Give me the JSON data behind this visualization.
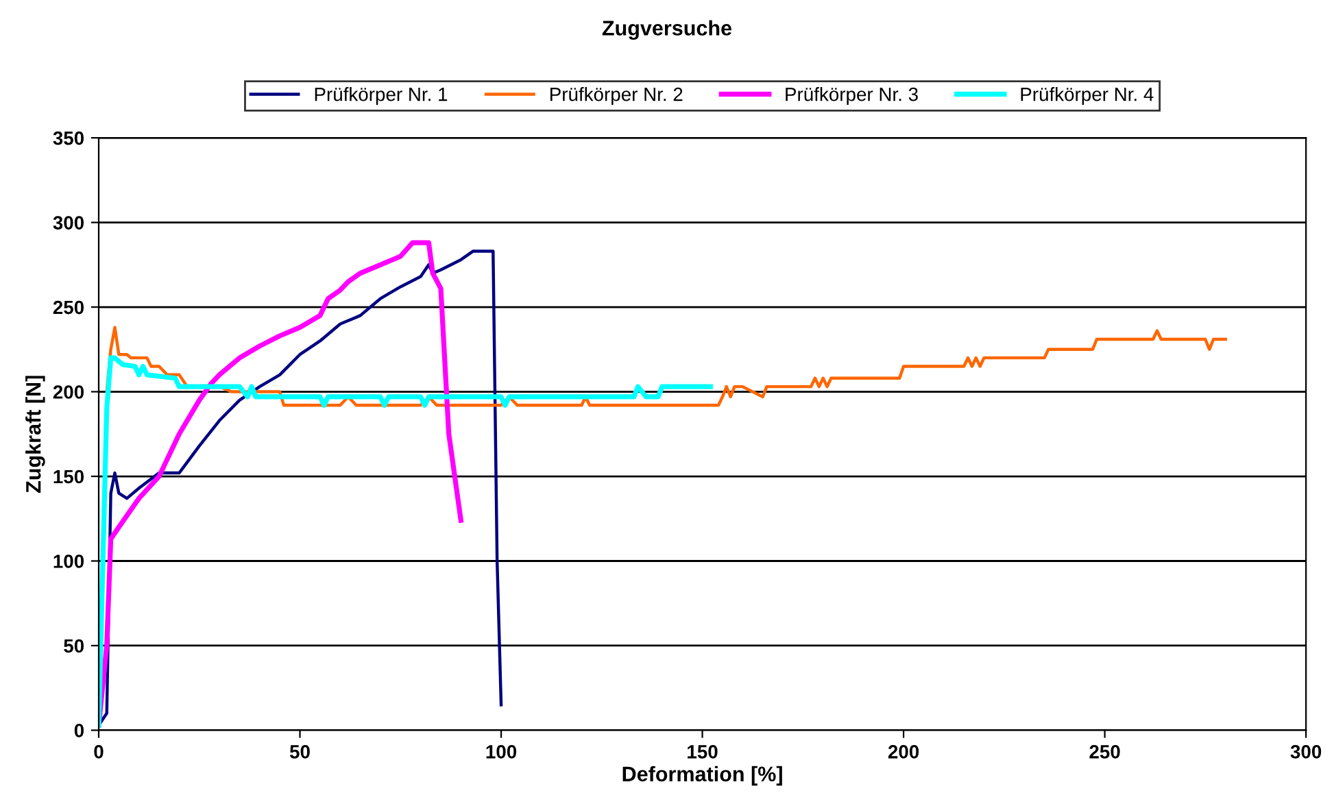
{
  "chart_data": {
    "type": "line",
    "title": "Zugversuche",
    "xlabel": "Deformation [%]",
    "ylabel": "Zugkraft [N]",
    "xlim": [
      0,
      300
    ],
    "ylim": [
      0,
      350
    ],
    "xticks": [
      0,
      50,
      100,
      150,
      200,
      250,
      300
    ],
    "yticks": [
      0,
      50,
      100,
      150,
      200,
      250,
      300,
      350
    ],
    "grid": "y",
    "legend": "top",
    "marker": "none",
    "line_style": "solid",
    "series": [
      {
        "name": "Prüfkörper Nr. 1",
        "color": "#000080",
        "x": [
          0,
          2,
          3,
          4,
          5,
          7,
          10,
          15,
          20,
          25,
          30,
          35,
          40,
          45,
          50,
          55,
          60,
          65,
          70,
          75,
          80,
          82,
          83,
          85,
          90,
          93,
          98,
          99,
          100
        ],
        "values": [
          3,
          10,
          140,
          152,
          140,
          137,
          143,
          152,
          152,
          168,
          183,
          195,
          203,
          210,
          222,
          230,
          240,
          245,
          255,
          262,
          268,
          275,
          270,
          272,
          278,
          283,
          283,
          100,
          15
        ]
      },
      {
        "name": "Prüfkörper Nr. 2",
        "color": "#ff6600",
        "x": [
          2,
          3,
          4,
          5,
          7,
          8,
          12,
          13,
          15,
          17,
          20,
          22,
          30,
          33,
          45,
          46,
          60,
          62,
          64,
          80,
          82,
          84,
          100,
          102,
          104,
          120,
          121,
          122,
          154,
          155,
          156,
          157,
          158,
          160,
          165,
          166,
          177,
          178,
          179,
          180,
          181,
          182,
          199,
          200,
          215,
          216,
          217,
          218,
          219,
          220,
          235,
          236,
          247,
          248,
          262,
          263,
          264,
          275,
          276,
          277,
          280
        ],
        "values": [
          200,
          225,
          238,
          222,
          222,
          220,
          220,
          215,
          215,
          210,
          210,
          203,
          203,
          200,
          200,
          192,
          192,
          197,
          192,
          192,
          197,
          192,
          192,
          197,
          192,
          192,
          197,
          192,
          192,
          197,
          203,
          197,
          203,
          203,
          197,
          203,
          203,
          208,
          203,
          208,
          203,
          208,
          208,
          215,
          215,
          220,
          215,
          220,
          215,
          220,
          220,
          225,
          225,
          231,
          231,
          236,
          231,
          231,
          225,
          231,
          231
        ]
      },
      {
        "name": "Prüfkörper Nr. 3",
        "color": "#ff00ff",
        "x": [
          0,
          2,
          3,
          5,
          10,
          15,
          20,
          25,
          28,
          30,
          35,
          40,
          45,
          50,
          55,
          57,
          60,
          62,
          65,
          70,
          75,
          78,
          82,
          83,
          85,
          87,
          90
        ],
        "values": [
          3,
          50,
          113,
          120,
          137,
          150,
          175,
          195,
          205,
          210,
          220,
          227,
          233,
          238,
          245,
          255,
          260,
          265,
          270,
          275,
          280,
          288,
          288,
          270,
          261,
          175,
          124
        ]
      },
      {
        "name": "Prüfkörper Nr. 4",
        "color": "#00ffff",
        "x": [
          0,
          2,
          3,
          4,
          6,
          9,
          10,
          11,
          12,
          19,
          20,
          35,
          37,
          38,
          39,
          55,
          56,
          57,
          70,
          71,
          72,
          80,
          81,
          82,
          100,
          101,
          102,
          133,
          134,
          136,
          139,
          140,
          141,
          152
        ],
        "values": [
          3,
          190,
          220,
          220,
          216,
          215,
          210,
          215,
          210,
          208,
          203,
          203,
          197,
          203,
          197,
          197,
          192,
          197,
          197,
          192,
          197,
          197,
          192,
          197,
          197,
          192,
          197,
          197,
          203,
          197,
          197,
          203,
          203,
          203
        ]
      }
    ]
  }
}
